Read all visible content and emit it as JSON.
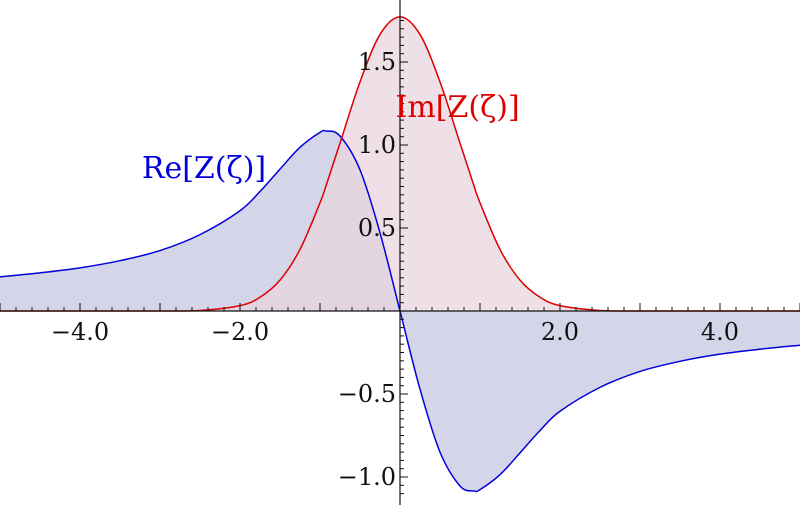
{
  "chart_data": {
    "type": "area",
    "title": "",
    "xlabel": "",
    "ylabel": "",
    "xlim": [
      -5,
      5
    ],
    "ylim": [
      -1.15,
      1.8
    ],
    "grid": false,
    "legend": "none",
    "x_ticks": [
      {
        "value": -4,
        "label": "−4.0"
      },
      {
        "value": -2,
        "label": "−2.0"
      },
      {
        "value": 2,
        "label": "2.0"
      },
      {
        "value": 4,
        "label": "4.0"
      }
    ],
    "y_ticks": [
      {
        "value": 1.5,
        "label": "1.5"
      },
      {
        "value": 1.0,
        "label": "1.0"
      },
      {
        "value": 0.5,
        "label": "0.5"
      },
      {
        "value": -0.5,
        "label": "−0.5"
      },
      {
        "value": -1.0,
        "label": "−1.0"
      }
    ],
    "x": [
      -5.0,
      -4.5,
      -4.0,
      -3.5,
      -3.0,
      -2.5,
      -2.0,
      -1.75,
      -1.5,
      -1.25,
      -1.0,
      -0.92,
      -0.75,
      -0.5,
      -0.25,
      0.0,
      0.25,
      0.5,
      0.75,
      0.92,
      1.0,
      1.25,
      1.5,
      1.75,
      2.0,
      2.5,
      3.0,
      3.5,
      4.0,
      4.5,
      5.0
    ],
    "series": [
      {
        "name": "Re[Z(ζ)]",
        "color": "#0000dd",
        "fill": "#d5d5ea",
        "values": [
          0.206,
          0.23,
          0.26,
          0.303,
          0.364,
          0.46,
          0.604,
          0.72,
          0.855,
          0.986,
          1.076,
          1.084,
          1.054,
          0.85,
          0.471,
          0.0,
          -0.471,
          -0.85,
          -1.054,
          -1.084,
          -1.076,
          -0.986,
          -0.855,
          -0.72,
          -0.604,
          -0.46,
          -0.364,
          -0.303,
          -0.26,
          -0.23,
          -0.206
        ]
      },
      {
        "name": "Im[Z(ζ)]",
        "color": "#dd0000",
        "fill": "#e8d5de",
        "values": [
          0.0,
          0.0,
          0.0,
          0.0,
          0.0002,
          0.0034,
          0.0325,
          0.083,
          0.186,
          0.371,
          0.652,
          0.761,
          1.011,
          1.38,
          1.666,
          1.772,
          1.666,
          1.38,
          1.011,
          0.761,
          0.652,
          0.371,
          0.186,
          0.083,
          0.0325,
          0.0034,
          0.0002,
          0.0,
          0.0,
          0.0,
          0.0
        ]
      }
    ],
    "annotations": [
      {
        "text": "Re[Z(ζ)]",
        "series": 0,
        "x": -2.45,
        "y": 0.8
      },
      {
        "text": "Im[Z(ζ)]",
        "series": 1,
        "x": 0.72,
        "y": 1.17
      }
    ]
  }
}
